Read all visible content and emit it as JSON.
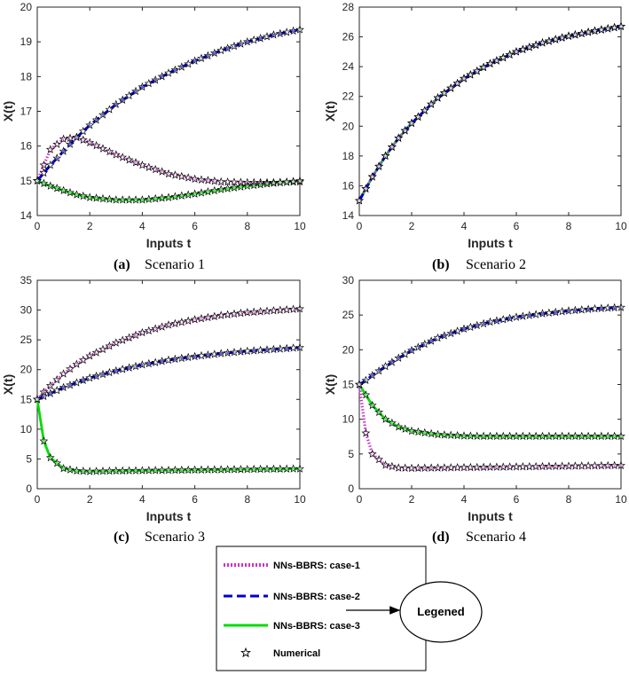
{
  "chart_data": [
    {
      "type": "line",
      "caption_label": "(a)",
      "caption_text": "Scenario 1",
      "xlabel": "Inputs t",
      "ylabel": "X(t)",
      "xlim": [
        0,
        10
      ],
      "ylim": [
        14,
        20
      ],
      "xticks": [
        0,
        2,
        4,
        6,
        8,
        10
      ],
      "yticks": [
        14,
        15,
        16,
        17,
        18,
        19,
        20
      ],
      "x": [
        0,
        0.5,
        1,
        1.5,
        2,
        3,
        4,
        5,
        6,
        7,
        8,
        9,
        10
      ],
      "series": [
        {
          "name": "NNs-BBRS: case-1",
          "values": [
            15.0,
            15.9,
            16.2,
            16.25,
            16.1,
            15.75,
            15.45,
            15.2,
            15.05,
            14.97,
            14.95,
            14.95,
            14.97
          ]
        },
        {
          "name": "NNs-BBRS: case-2",
          "values": [
            15.0,
            15.45,
            15.85,
            16.25,
            16.6,
            17.2,
            17.7,
            18.1,
            18.45,
            18.75,
            19.0,
            19.2,
            19.35
          ]
        },
        {
          "name": "NNs-BBRS: case-3",
          "values": [
            15.0,
            14.85,
            14.72,
            14.6,
            14.52,
            14.45,
            14.45,
            14.52,
            14.62,
            14.75,
            14.85,
            14.93,
            15.0
          ]
        }
      ]
    },
    {
      "type": "line",
      "caption_label": "(b)",
      "caption_text": "Scenario 2",
      "xlabel": "Inputs t",
      "ylabel": "X(t)",
      "xlim": [
        0,
        10
      ],
      "ylim": [
        14,
        28
      ],
      "xticks": [
        0,
        2,
        4,
        6,
        8,
        10
      ],
      "yticks": [
        14,
        16,
        18,
        20,
        22,
        24,
        26,
        28
      ],
      "x": [
        0,
        0.5,
        1,
        1.5,
        2,
        3,
        4,
        5,
        6,
        7,
        8,
        9,
        10
      ],
      "series": [
        {
          "name": "NNs-BBRS: case-1",
          "values": [
            15.0,
            16.6,
            18.0,
            19.2,
            20.2,
            21.9,
            23.2,
            24.2,
            25.0,
            25.6,
            26.05,
            26.4,
            26.7
          ]
        },
        {
          "name": "NNs-BBRS: case-2",
          "values": [
            15.0,
            16.6,
            18.0,
            19.2,
            20.2,
            21.9,
            23.2,
            24.2,
            25.0,
            25.6,
            26.05,
            26.4,
            26.7
          ]
        },
        {
          "name": "NNs-BBRS: case-3",
          "values": [
            15.0,
            16.6,
            18.0,
            19.2,
            20.2,
            21.9,
            23.2,
            24.2,
            25.0,
            25.6,
            26.05,
            26.4,
            26.7
          ]
        }
      ]
    },
    {
      "type": "line",
      "caption_label": "(c)",
      "caption_text": "Scenario 3",
      "xlabel": "Inputs t",
      "ylabel": "X(t)",
      "xlim": [
        0,
        10
      ],
      "ylim": [
        0,
        35
      ],
      "xticks": [
        0,
        2,
        4,
        6,
        8,
        10
      ],
      "yticks": [
        0,
        5,
        10,
        15,
        20,
        25,
        30,
        35
      ],
      "x": [
        0,
        0.25,
        0.5,
        1,
        1.5,
        2,
        3,
        4,
        5,
        6,
        7,
        8,
        9,
        10
      ],
      "series": [
        {
          "name": "NNs-BBRS: case-1",
          "values": [
            15.0,
            16.2,
            17.3,
            19.3,
            20.9,
            22.3,
            24.5,
            26.2,
            27.5,
            28.4,
            29.1,
            29.6,
            29.9,
            30.2
          ]
        },
        {
          "name": "NNs-BBRS: case-2",
          "values": [
            15.0,
            15.5,
            16.0,
            17.0,
            17.8,
            18.6,
            19.8,
            20.8,
            21.6,
            22.2,
            22.7,
            23.1,
            23.4,
            23.7
          ]
        },
        {
          "name": "NNs-BBRS: case-3",
          "values": [
            15.0,
            8.0,
            5.2,
            3.4,
            3.0,
            2.9,
            3.0,
            3.05,
            3.1,
            3.15,
            3.2,
            3.25,
            3.3,
            3.35
          ]
        }
      ]
    },
    {
      "type": "line",
      "caption_label": "(d)",
      "caption_text": "Scenario 4",
      "xlabel": "Inputs t",
      "ylabel": "X(t)",
      "xlim": [
        0,
        10
      ],
      "ylim": [
        0,
        30
      ],
      "xticks": [
        0,
        2,
        4,
        6,
        8,
        10
      ],
      "yticks": [
        0,
        5,
        10,
        15,
        20,
        25,
        30
      ],
      "x": [
        0,
        0.25,
        0.5,
        1,
        1.5,
        2,
        3,
        4,
        5,
        6,
        7,
        8,
        9,
        10
      ],
      "series": [
        {
          "name": "NNs-BBRS: case-1",
          "values": [
            15.0,
            8.0,
            5.0,
            3.4,
            3.0,
            2.95,
            3.0,
            3.05,
            3.1,
            3.15,
            3.2,
            3.25,
            3.3,
            3.35
          ]
        },
        {
          "name": "NNs-BBRS: case-2",
          "values": [
            15.0,
            15.6,
            16.3,
            17.6,
            18.8,
            19.9,
            21.7,
            23.0,
            24.0,
            24.7,
            25.2,
            25.6,
            25.9,
            26.1
          ]
        },
        {
          "name": "NNs-BBRS: case-3",
          "values": [
            15.0,
            13.5,
            12.0,
            10.0,
            8.9,
            8.3,
            7.8,
            7.6,
            7.55,
            7.55,
            7.55,
            7.55,
            7.55,
            7.55
          ]
        }
      ]
    }
  ],
  "legend": {
    "entries": [
      {
        "label": "NNs-BBRS: case-1",
        "color": "#cc33cc",
        "style": "dotted"
      },
      {
        "label": "NNs-BBRS: case-2",
        "color": "#0000cc",
        "style": "dashed"
      },
      {
        "label": "NNs-BBRS: case-3",
        "color": "#00dd00",
        "style": "solid"
      },
      {
        "label": "Numerical",
        "color": "#000000",
        "style": "star"
      }
    ],
    "callout": "Legened"
  },
  "colors": {
    "case1": "#cc33cc",
    "case2": "#0000cc",
    "case3": "#00dd00",
    "marker": "#000000",
    "axis": "#262626"
  }
}
